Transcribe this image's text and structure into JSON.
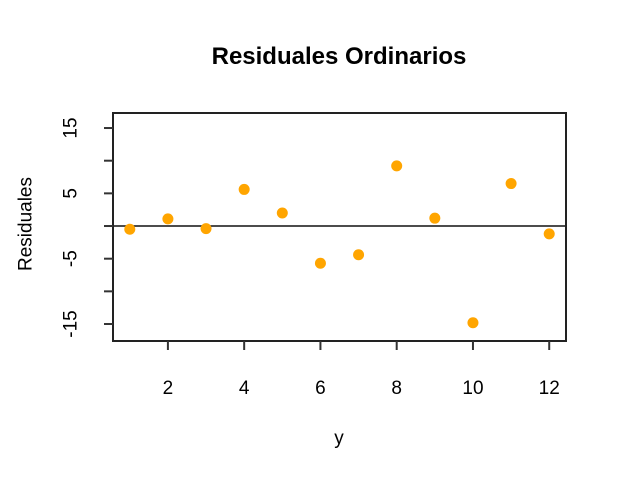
{
  "window": {
    "background_color": "#FFFFFF"
  },
  "chart_data": {
    "type": "scatter",
    "title": "Residuales Ordinarios",
    "xlabel": "y",
    "ylabel": "Residuales",
    "x": [
      1,
      2,
      3,
      4,
      5,
      6,
      7,
      8,
      9,
      10,
      11,
      12
    ],
    "y": [
      -0.5,
      1.1,
      -0.4,
      5.6,
      2.0,
      -5.7,
      -4.4,
      9.2,
      1.2,
      -14.8,
      6.5,
      -1.2
    ],
    "xlim": [
      0.56,
      12.44
    ],
    "ylim": [
      -17.6,
      17.3
    ],
    "x_ticks": [
      2,
      4,
      6,
      8,
      10,
      12
    ],
    "y_ticks": [
      15,
      10,
      5,
      0,
      -5,
      -10,
      -15
    ],
    "y_ticks_labeled": [
      15,
      5,
      -5,
      -15
    ],
    "reference_line_y": 0,
    "grid": false,
    "legend": false,
    "point_style": "filled-circle",
    "colors": {
      "point": "#FFA500",
      "frame": "#222222",
      "tick": "#333333",
      "reference_line": "#111111",
      "text": "#000000"
    }
  }
}
